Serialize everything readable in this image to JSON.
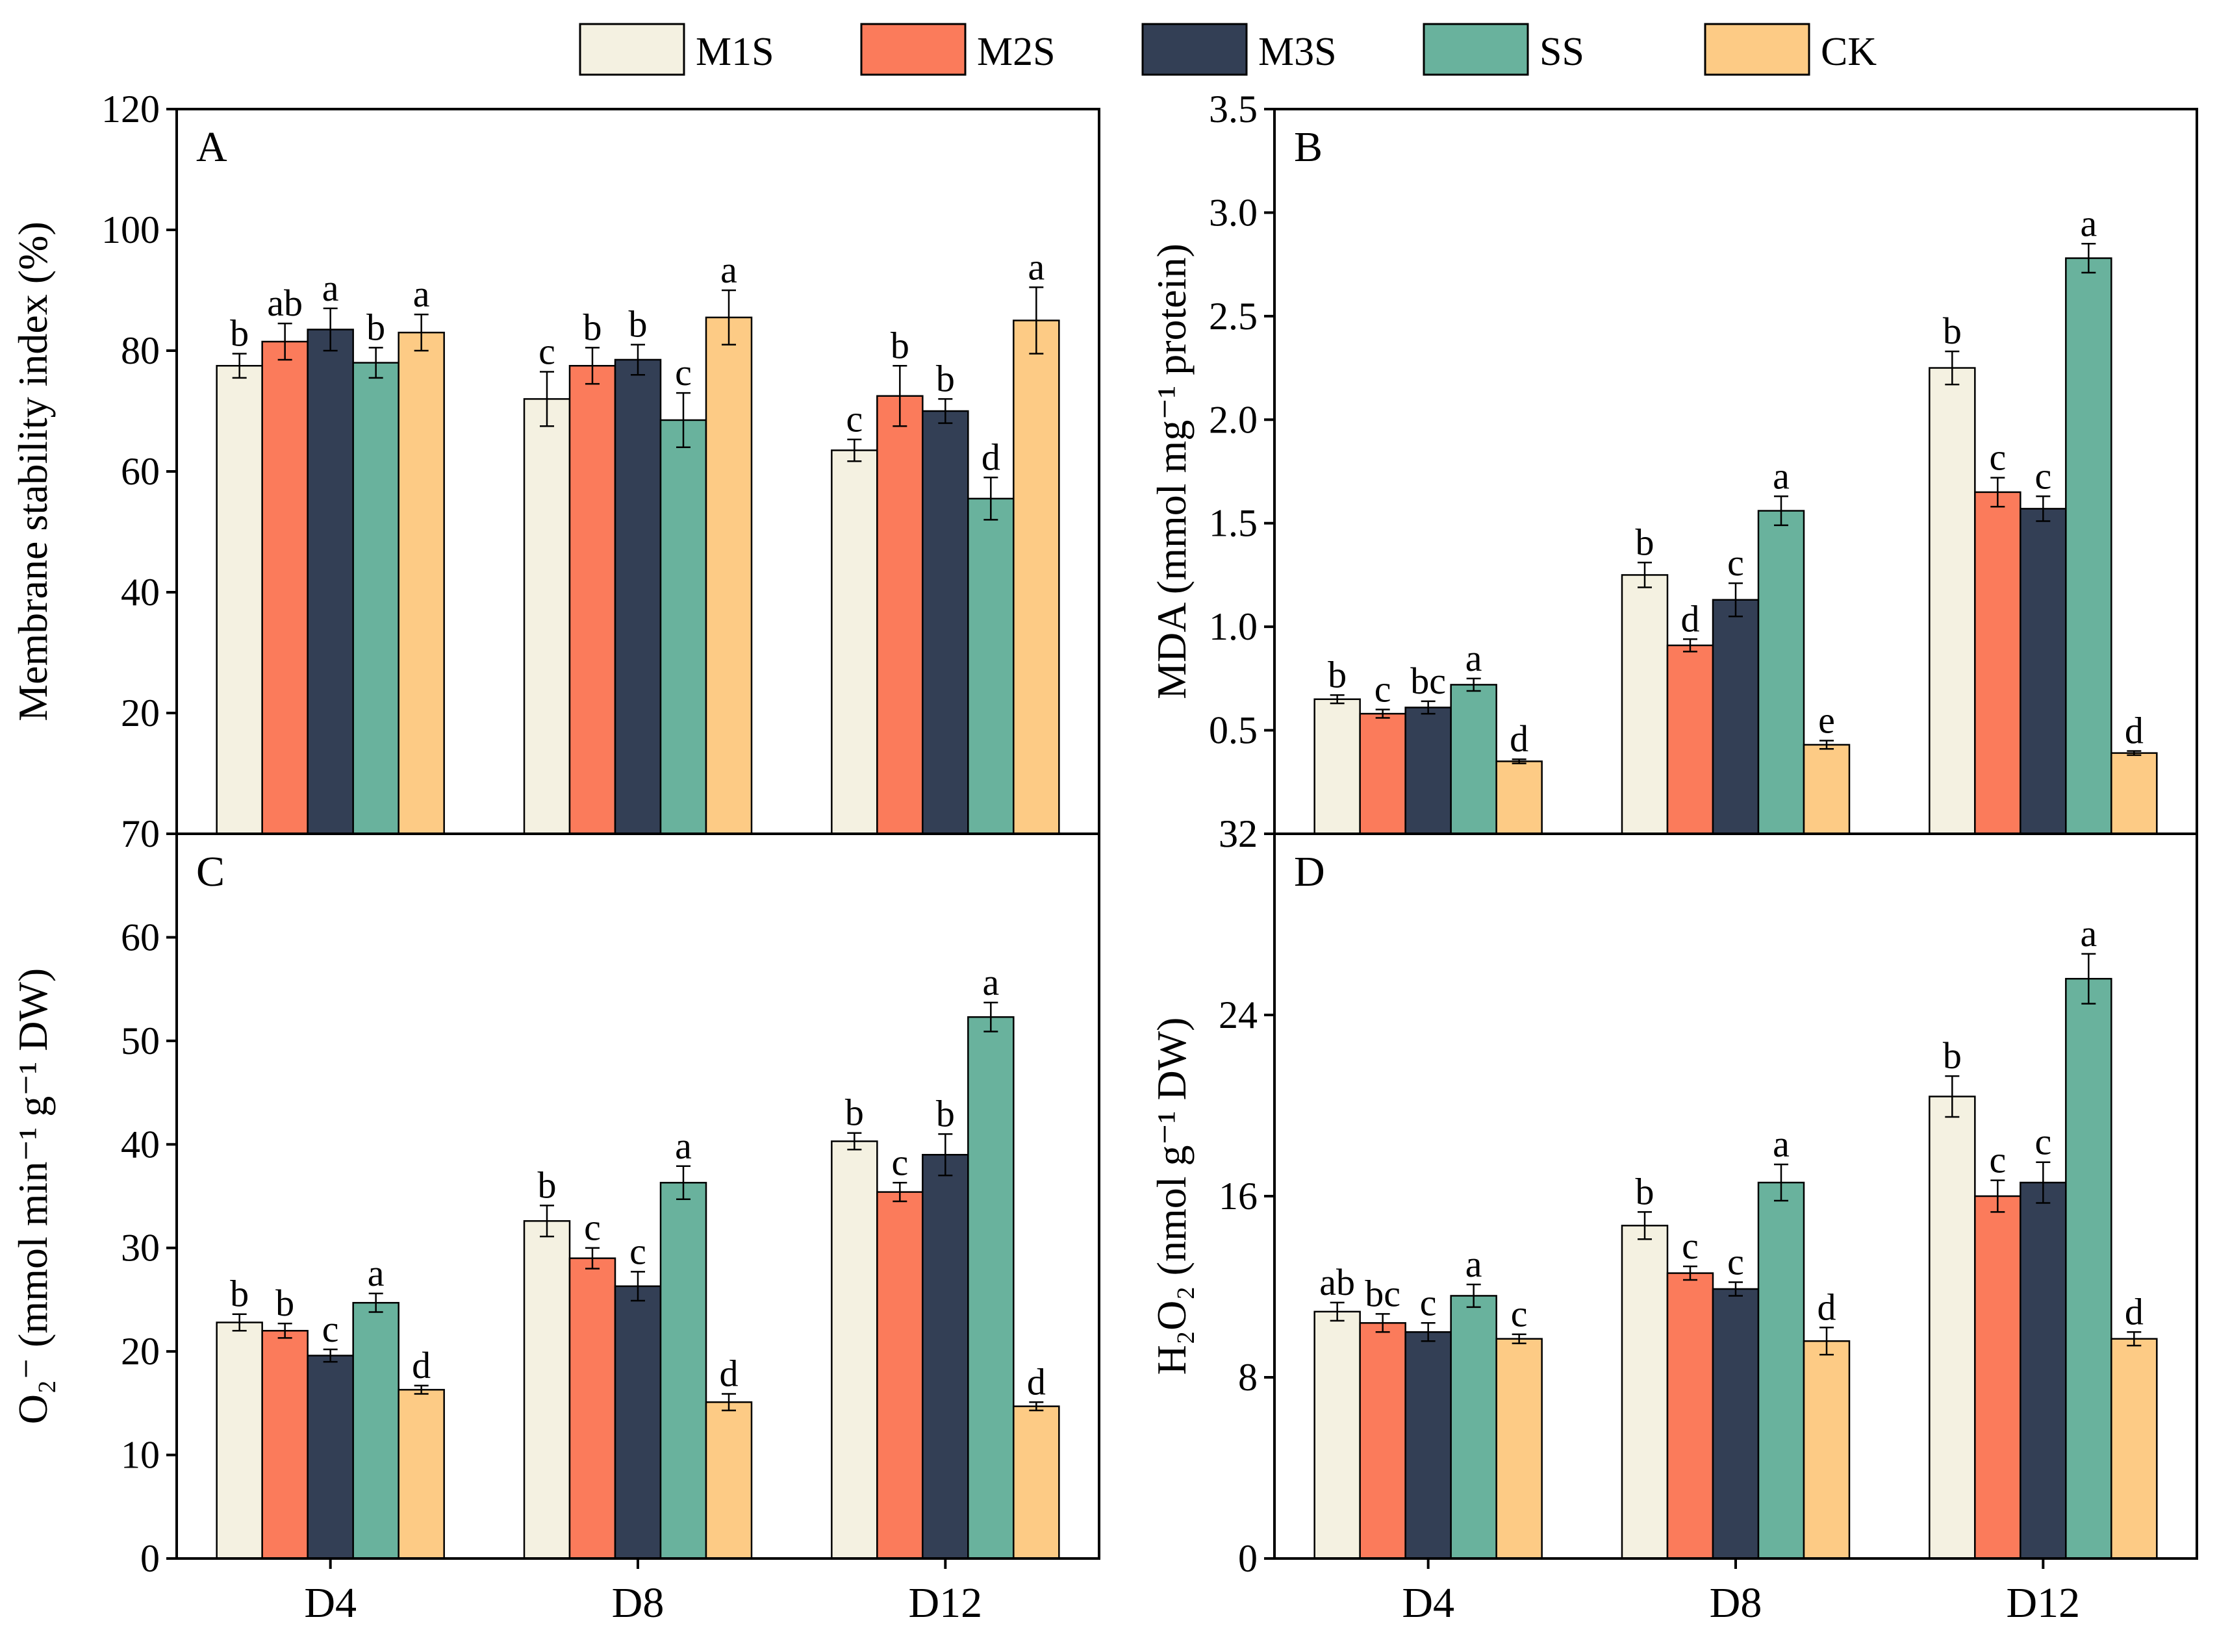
{
  "chart_data": {
    "type": "bar",
    "categories": [
      "D4",
      "D8",
      "D12"
    ],
    "series_names": [
      "M1S",
      "M2S",
      "M3S",
      "SS",
      "CK"
    ],
    "colors": {
      "M1S": "#f4f1e1",
      "M2S": "#fb7b5b",
      "M3S": "#333f55",
      "SS": "#69b29d",
      "CK": "#fdcb85"
    },
    "panels": [
      {
        "letter": "A",
        "ylabel": "Membrane stability index (%)",
        "ylim": [
          0,
          120
        ],
        "yticks": [
          20,
          40,
          60,
          80,
          100,
          120
        ],
        "bottom_tick_label": "70",
        "series": [
          {
            "name": "M1S",
            "values": [
              77.5,
              72,
              63.5
            ],
            "errors": [
              2,
              4.5,
              1.8
            ],
            "letters": [
              "b",
              "c",
              "c"
            ]
          },
          {
            "name": "M2S",
            "values": [
              81.5,
              77.5,
              72.5
            ],
            "errors": [
              3,
              3,
              5
            ],
            "letters": [
              "ab",
              "b",
              "b"
            ]
          },
          {
            "name": "M3S",
            "values": [
              83.5,
              78.5,
              70
            ],
            "errors": [
              3.5,
              2.5,
              2
            ],
            "letters": [
              "a",
              "b",
              "b"
            ]
          },
          {
            "name": "SS",
            "values": [
              78,
              68.5,
              55.5
            ],
            "errors": [
              2.5,
              4.5,
              3.5
            ],
            "letters": [
              "b",
              "c",
              "d"
            ]
          },
          {
            "name": "CK",
            "values": [
              83,
              85.5,
              85
            ],
            "errors": [
              3,
              4.5,
              5.5
            ],
            "letters": [
              "a",
              "a",
              "a"
            ]
          }
        ]
      },
      {
        "letter": "B",
        "ylabel": "MDA (mmol mg⁻¹ protein)",
        "ylim": [
          0,
          3.5
        ],
        "yticks": [
          0.5,
          1.0,
          1.5,
          2.0,
          2.5,
          3.0,
          3.5
        ],
        "tick_decimals": 1,
        "bottom_tick_label": "32",
        "series": [
          {
            "name": "M1S",
            "values": [
              0.65,
              1.25,
              2.25
            ],
            "errors": [
              0.02,
              0.06,
              0.08
            ],
            "letters": [
              "b",
              "b",
              "b"
            ]
          },
          {
            "name": "M2S",
            "values": [
              0.58,
              0.91,
              1.65
            ],
            "errors": [
              0.02,
              0.03,
              0.07
            ],
            "letters": [
              "c",
              "d",
              "c"
            ]
          },
          {
            "name": "M3S",
            "values": [
              0.61,
              1.13,
              1.57
            ],
            "errors": [
              0.03,
              0.08,
              0.06
            ],
            "letters": [
              "bc",
              "c",
              "c"
            ]
          },
          {
            "name": "SS",
            "values": [
              0.72,
              1.56,
              2.78
            ],
            "errors": [
              0.03,
              0.07,
              0.07
            ],
            "letters": [
              "a",
              "a",
              "a"
            ]
          },
          {
            "name": "CK",
            "values": [
              0.35,
              0.43,
              0.39
            ],
            "errors": [
              0.01,
              0.02,
              0.01
            ],
            "letters": [
              "d",
              "e",
              "d"
            ]
          }
        ]
      },
      {
        "letter": "C",
        "ylabel": "O₂⁻ (mmol min⁻¹ g⁻¹ DW)",
        "ylim": [
          0,
          70
        ],
        "yticks": [
          0,
          10,
          20,
          30,
          40,
          50,
          60
        ],
        "series": [
          {
            "name": "M1S",
            "values": [
              22.8,
              32.6,
              40.3
            ],
            "errors": [
              0.8,
              1.5,
              0.8
            ],
            "letters": [
              "b",
              "b",
              "b"
            ]
          },
          {
            "name": "M2S",
            "values": [
              22,
              29,
              35.4
            ],
            "errors": [
              0.7,
              1,
              0.9
            ],
            "letters": [
              "b",
              "c",
              "c"
            ]
          },
          {
            "name": "M3S",
            "values": [
              19.6,
              26.3,
              39
            ],
            "errors": [
              0.6,
              1.4,
              2
            ],
            "letters": [
              "c",
              "c",
              "b"
            ]
          },
          {
            "name": "SS",
            "values": [
              24.7,
              36.3,
              52.3
            ],
            "errors": [
              0.9,
              1.6,
              1.4
            ],
            "letters": [
              "a",
              "a",
              "a"
            ]
          },
          {
            "name": "CK",
            "values": [
              16.3,
              15.1,
              14.7
            ],
            "errors": [
              0.4,
              0.8,
              0.4
            ],
            "letters": [
              "d",
              "d",
              "d"
            ]
          }
        ]
      },
      {
        "letter": "D",
        "ylabel": "H₂O₂ (nmol g⁻¹ DW)",
        "ylim": [
          0,
          32
        ],
        "yticks": [
          0,
          8,
          16,
          24,
          32
        ],
        "series": [
          {
            "name": "M1S",
            "values": [
              10.9,
              14.7,
              20.4
            ],
            "errors": [
              0.4,
              0.6,
              0.9
            ],
            "letters": [
              "ab",
              "b",
              "b"
            ]
          },
          {
            "name": "M2S",
            "values": [
              10.4,
              12.6,
              16
            ],
            "errors": [
              0.4,
              0.3,
              0.7
            ],
            "letters": [
              "bc",
              "c",
              "c"
            ]
          },
          {
            "name": "M3S",
            "values": [
              10,
              11.9,
              16.6
            ],
            "errors": [
              0.4,
              0.3,
              0.9
            ],
            "letters": [
              "c",
              "c",
              "c"
            ]
          },
          {
            "name": "SS",
            "values": [
              11.6,
              16.6,
              25.6
            ],
            "errors": [
              0.5,
              0.8,
              1.1
            ],
            "letters": [
              "a",
              "a",
              "a"
            ]
          },
          {
            "name": "CK",
            "values": [
              9.7,
              9.6,
              9.7
            ],
            "errors": [
              0.2,
              0.6,
              0.3
            ],
            "letters": [
              "c",
              "d",
              "d"
            ]
          }
        ]
      }
    ]
  }
}
